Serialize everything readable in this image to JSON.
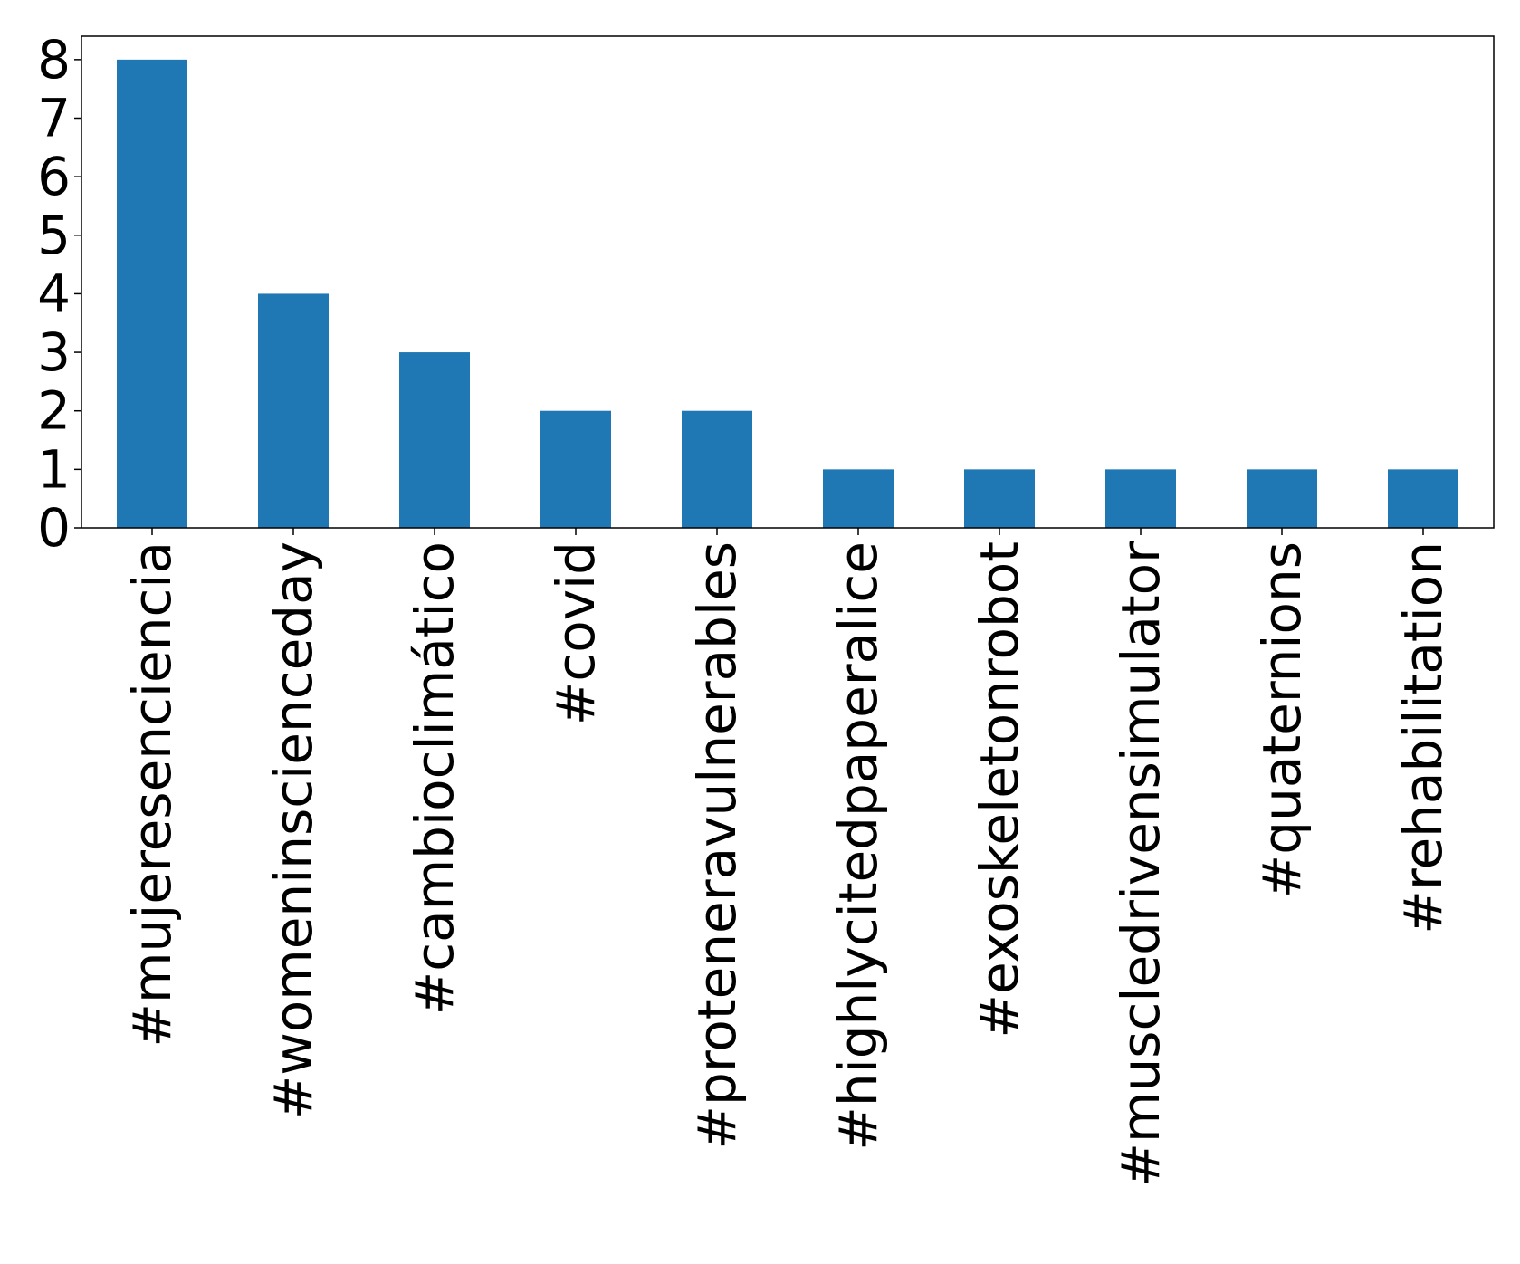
{
  "chart_data": {
    "type": "bar",
    "title": "",
    "xlabel": "",
    "ylabel": "",
    "categories": [
      "#mujeresenciencia",
      "#womeninscienceday",
      "#cambioclimático",
      "#covid",
      "#proteneravulnerables",
      "#highlycitedpaperalice",
      "#exoskeletonrobot",
      "#muscledrivensimulator",
      "#quaternions",
      "#rehabilitation"
    ],
    "values": [
      8,
      4,
      3,
      2,
      2,
      1,
      1,
      1,
      1,
      1
    ],
    "yticks": [
      "0",
      "1",
      "2",
      "3",
      "4",
      "5",
      "6",
      "7",
      "8"
    ],
    "ylim": [
      0,
      8.4
    ],
    "grid": false,
    "bar_color": "#1f77b4"
  }
}
